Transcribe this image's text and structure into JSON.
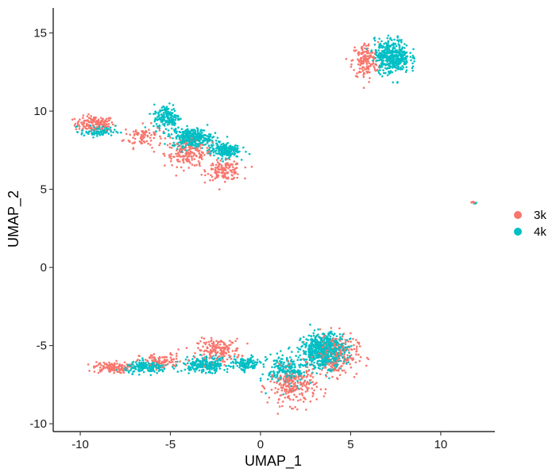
{
  "chart_data": {
    "type": "scatter",
    "title": "",
    "xlabel": "UMAP_1",
    "ylabel": "UMAP_2",
    "xlim": [
      -11.5,
      13.0
    ],
    "ylim": [
      -10.5,
      16.6
    ],
    "x_ticks": [
      -10,
      -5,
      0,
      5,
      10
    ],
    "y_ticks": [
      -10,
      -5,
      0,
      5,
      10,
      15
    ],
    "x_tick_labels": [
      "-10",
      "-5",
      "0",
      "5",
      "10"
    ],
    "y_tick_labels": [
      "-10",
      "-5",
      "0",
      "5",
      "10",
      "15"
    ],
    "grid": false,
    "legend_position": "right",
    "series": [
      {
        "name": "3k",
        "color": "#F8766D",
        "clusters": [
          {
            "center": [
              -9.2,
              9.2
            ],
            "spread": [
              0.9,
              0.4
            ],
            "count": 140
          },
          {
            "center": [
              -6.5,
              8.4
            ],
            "spread": [
              0.9,
              0.6
            ],
            "count": 90
          },
          {
            "center": [
              -4.0,
              7.3
            ],
            "spread": [
              1.1,
              0.7
            ],
            "count": 170
          },
          {
            "center": [
              -2.0,
              6.2
            ],
            "spread": [
              0.8,
              0.5
            ],
            "count": 140
          },
          {
            "center": [
              5.8,
              13.2
            ],
            "spread": [
              0.6,
              1.0
            ],
            "count": 160
          },
          {
            "center": [
              11.8,
              4.2
            ],
            "spread": [
              0.1,
              0.05
            ],
            "count": 6
          },
          {
            "center": [
              -8.3,
              -6.4
            ],
            "spread": [
              0.8,
              0.3
            ],
            "count": 120
          },
          {
            "center": [
              -5.5,
              -6.0
            ],
            "spread": [
              1.0,
              0.4
            ],
            "count": 90
          },
          {
            "center": [
              -2.3,
              -5.3
            ],
            "spread": [
              1.0,
              0.6
            ],
            "count": 170
          },
          {
            "center": [
              1.8,
              -7.6
            ],
            "spread": [
              1.1,
              1.0
            ],
            "count": 230
          },
          {
            "center": [
              4.2,
              -5.6
            ],
            "spread": [
              1.0,
              1.1
            ],
            "count": 220
          }
        ]
      },
      {
        "name": "4k",
        "color": "#00BFC4",
        "clusters": [
          {
            "center": [
              -9.0,
              8.7
            ],
            "spread": [
              0.8,
              0.3
            ],
            "count": 90
          },
          {
            "center": [
              -5.2,
              9.6
            ],
            "spread": [
              0.6,
              0.7
            ],
            "count": 160
          },
          {
            "center": [
              -3.8,
              8.3
            ],
            "spread": [
              0.9,
              0.5
            ],
            "count": 320
          },
          {
            "center": [
              -2.0,
              7.5
            ],
            "spread": [
              0.7,
              0.4
            ],
            "count": 200
          },
          {
            "center": [
              7.3,
              13.5
            ],
            "spread": [
              0.8,
              0.9
            ],
            "count": 420
          },
          {
            "center": [
              11.9,
              4.1
            ],
            "spread": [
              0.08,
              0.05
            ],
            "count": 8
          },
          {
            "center": [
              -6.3,
              -6.4
            ],
            "spread": [
              1.0,
              0.3
            ],
            "count": 180
          },
          {
            "center": [
              -3.0,
              -6.2
            ],
            "spread": [
              1.1,
              0.4
            ],
            "count": 240
          },
          {
            "center": [
              -0.8,
              -6.2
            ],
            "spread": [
              0.6,
              0.35
            ],
            "count": 120
          },
          {
            "center": [
              1.5,
              -6.6
            ],
            "spread": [
              0.9,
              0.9
            ],
            "count": 220
          },
          {
            "center": [
              3.5,
              -5.3
            ],
            "spread": [
              1.0,
              0.9
            ],
            "count": 620
          }
        ]
      }
    ]
  }
}
